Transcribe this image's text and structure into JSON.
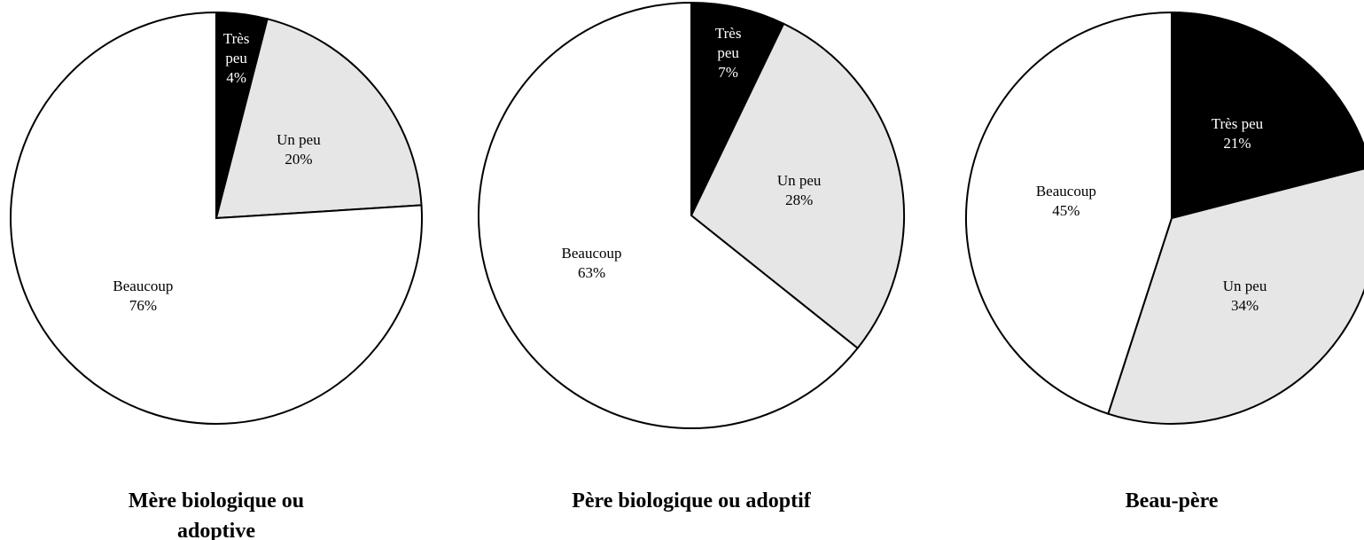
{
  "chart_data": [
    {
      "type": "pie",
      "title": "Mère biologique ou adoptive",
      "categories": [
        "Très peu",
        "Un peu",
        "Beaucoup"
      ],
      "values": [
        4,
        20,
        76
      ],
      "value_labels": [
        "4%",
        "20%",
        "76%"
      ],
      "colors": [
        "#000000",
        "#e6e6e6",
        "#ffffff"
      ]
    },
    {
      "type": "pie",
      "title": "Père biologique ou adoptif",
      "categories": [
        "Très peu",
        "Un peu",
        "Beaucoup"
      ],
      "values": [
        7,
        28,
        63
      ],
      "value_labels": [
        "7%",
        "28%",
        "63%"
      ],
      "colors": [
        "#000000",
        "#e6e6e6",
        "#ffffff"
      ]
    },
    {
      "type": "pie",
      "title": "Beau-père",
      "categories": [
        "Très peu",
        "Un peu",
        "Beaucoup"
      ],
      "values": [
        21,
        34,
        45
      ],
      "value_labels": [
        "21%",
        "34%",
        "45%"
      ],
      "colors": [
        "#000000",
        "#e6e6e6",
        "#ffffff"
      ]
    }
  ]
}
